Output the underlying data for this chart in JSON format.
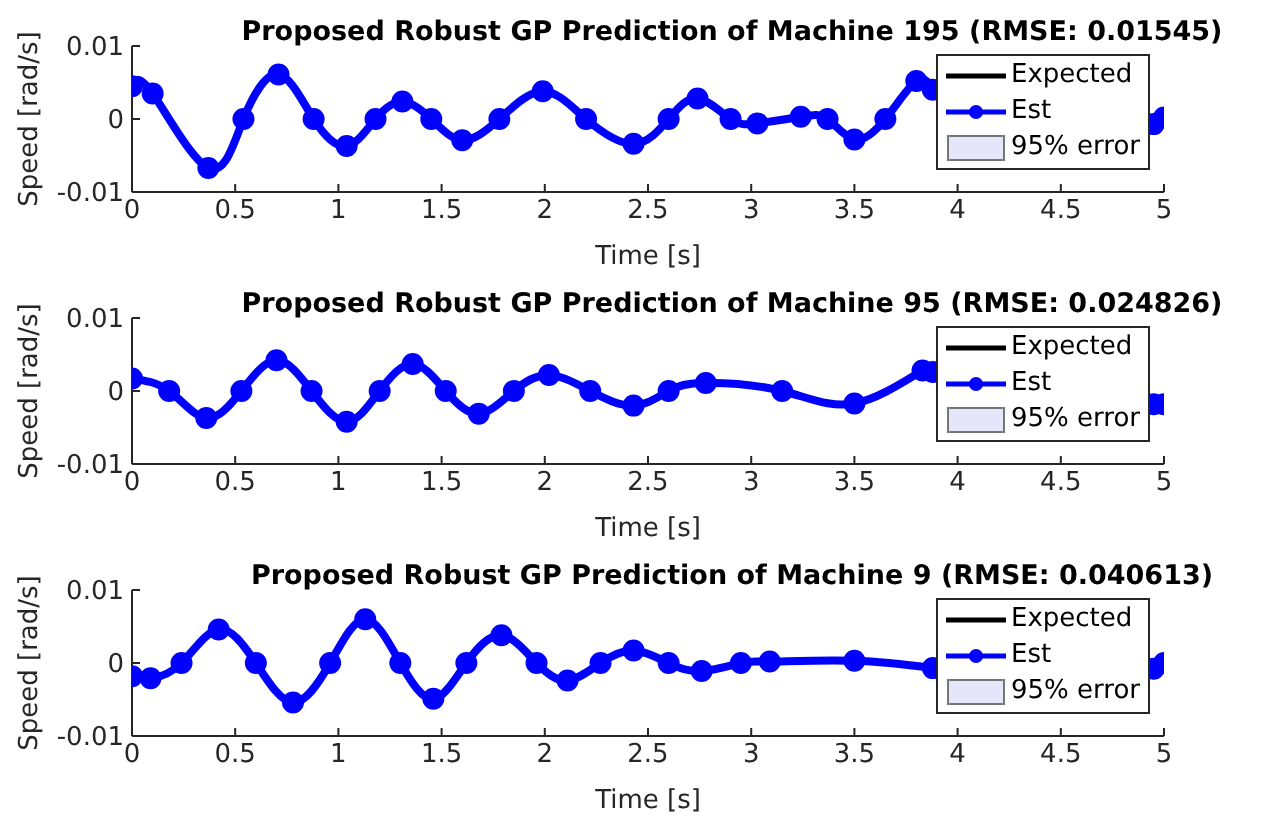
{
  "chart_data": [
    {
      "type": "line",
      "title": "Proposed Robust GP Prediction of Machine 195 (RMSE: 0.01545)",
      "xlabel": "Time [s]",
      "ylabel": "Speed [rad/s]",
      "xlim": [
        0,
        5
      ],
      "xticks": [
        0,
        0.5,
        1,
        1.5,
        2,
        2.5,
        3,
        3.5,
        4,
        4.5,
        5
      ],
      "ylim": [
        -0.01,
        0.01
      ],
      "yticks": [
        -0.01,
        0,
        0.01
      ],
      "legend": "right",
      "x": [
        0,
        0.1,
        0.37,
        0.54,
        0.71,
        0.88,
        1.04,
        1.18,
        1.31,
        1.45,
        1.6,
        1.78,
        1.99,
        2.2,
        2.43,
        2.6,
        2.74,
        2.9,
        3.03,
        3.24,
        3.37,
        3.5,
        3.65,
        3.8,
        3.88,
        4.4,
        4.95,
        5
      ],
      "series": [
        {
          "name": "Expected",
          "color": "#000000",
          "marker": "none",
          "values": [
            null,
            null,
            null,
            null,
            null,
            null,
            null,
            null,
            null,
            null,
            null,
            null,
            null,
            null,
            null,
            null,
            null,
            null,
            null,
            null,
            null,
            null,
            null,
            null,
            null,
            null,
            null,
            null
          ]
        },
        {
          "name": "Est",
          "color": "#0000ff",
          "marker": "circle",
          "values": [
            0.0045,
            0.0035,
            -0.0067,
            0,
            0.0061,
            0,
            -0.0037,
            0,
            0.0024,
            0,
            -0.0029,
            0,
            0.0038,
            0,
            -0.0034,
            0,
            0.0028,
            0,
            -0.0006,
            0.0003,
            0,
            -0.0028,
            0,
            0.0052,
            0.004,
            null,
            -0.0007,
            0.0002
          ]
        },
        {
          "name": "95% error",
          "type": "area",
          "color": "#e6e6fa",
          "values": [
            null,
            null,
            null,
            null,
            null,
            null,
            null,
            null,
            null,
            null,
            null,
            null,
            null,
            null,
            null,
            null,
            null,
            null,
            null,
            null,
            null,
            null,
            null,
            null,
            null,
            null,
            null,
            null
          ]
        }
      ]
    },
    {
      "type": "line",
      "title": "Proposed Robust GP Prediction of Machine 95 (RMSE: 0.024826)",
      "xlabel": "Time [s]",
      "ylabel": "Speed [rad/s]",
      "xlim": [
        0,
        5
      ],
      "xticks": [
        0,
        0.5,
        1,
        1.5,
        2,
        2.5,
        3,
        3.5,
        4,
        4.5,
        5
      ],
      "ylim": [
        -0.01,
        0.01
      ],
      "yticks": [
        -0.01,
        0,
        0.01
      ],
      "legend": "right",
      "x": [
        0,
        0.18,
        0.36,
        0.53,
        0.7,
        0.87,
        1.04,
        1.2,
        1.36,
        1.52,
        1.68,
        1.85,
        2.02,
        2.22,
        2.43,
        2.6,
        2.78,
        3.15,
        3.5,
        3.83,
        3.88,
        4.4,
        4.95,
        5
      ],
      "series": [
        {
          "name": "Expected",
          "color": "#000000",
          "marker": "none",
          "values": [
            null,
            null,
            null,
            null,
            null,
            null,
            null,
            null,
            null,
            null,
            null,
            null,
            null,
            null,
            null,
            null,
            null,
            null,
            null,
            null,
            null,
            null,
            null,
            null
          ]
        },
        {
          "name": "Est",
          "color": "#0000ff",
          "marker": "circle",
          "values": [
            0.0017,
            0,
            -0.0037,
            0,
            0.0042,
            0,
            -0.0042,
            0,
            0.0037,
            0,
            -0.0031,
            0,
            0.0022,
            0,
            -0.002,
            0,
            0.0011,
            0,
            -0.0017,
            0.0028,
            0.0026,
            null,
            -0.0018,
            -0.0018
          ]
        },
        {
          "name": "95% error",
          "type": "area",
          "color": "#e6e6fa",
          "values": [
            null,
            null,
            null,
            null,
            null,
            null,
            null,
            null,
            null,
            null,
            null,
            null,
            null,
            null,
            null,
            null,
            null,
            null,
            null,
            null,
            null,
            null,
            null,
            null
          ]
        }
      ]
    },
    {
      "type": "line",
      "title": "Proposed Robust GP Prediction of Machine 9 (RMSE: 0.040613)",
      "xlabel": "Time [s]",
      "ylabel": "Speed [rad/s]",
      "xlim": [
        0,
        5
      ],
      "xticks": [
        0,
        0.5,
        1,
        1.5,
        2,
        2.5,
        3,
        3.5,
        4,
        4.5,
        5
      ],
      "ylim": [
        -0.01,
        0.01
      ],
      "yticks": [
        -0.01,
        0,
        0.01
      ],
      "legend": "right",
      "x": [
        0,
        0.09,
        0.24,
        0.42,
        0.6,
        0.78,
        0.96,
        1.13,
        1.3,
        1.46,
        1.62,
        1.79,
        1.96,
        2.11,
        2.27,
        2.43,
        2.6,
        2.76,
        2.95,
        3.09,
        3.5,
        3.88,
        4.4,
        4.95,
        5
      ],
      "series": [
        {
          "name": "Expected",
          "color": "#000000",
          "marker": "none",
          "values": [
            null,
            null,
            null,
            null,
            null,
            null,
            null,
            null,
            null,
            null,
            null,
            null,
            null,
            null,
            null,
            null,
            null,
            null,
            null,
            null,
            null,
            null,
            null,
            null,
            null
          ]
        },
        {
          "name": "Est",
          "color": "#0000ff",
          "marker": "circle",
          "values": [
            -0.0018,
            -0.0021,
            0,
            0.0046,
            0,
            -0.0054,
            0,
            0.006,
            0,
            -0.0049,
            0,
            0.0038,
            0,
            -0.0024,
            0,
            0.0017,
            0,
            -0.0011,
            0,
            0.0002,
            0.0003,
            -0.0007,
            null,
            -0.0008,
            0
          ]
        },
        {
          "name": "95% error",
          "type": "area",
          "color": "#e6e6fa",
          "values": [
            null,
            null,
            null,
            null,
            null,
            null,
            null,
            null,
            null,
            null,
            null,
            null,
            null,
            null,
            null,
            null,
            null,
            null,
            null,
            null,
            null,
            null,
            null,
            null,
            null
          ]
        }
      ]
    }
  ]
}
